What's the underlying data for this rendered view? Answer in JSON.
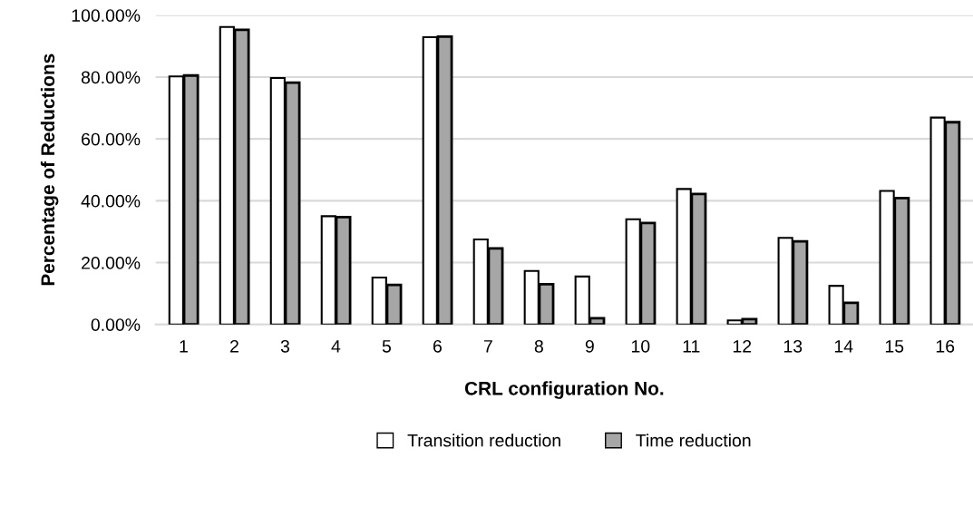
{
  "chart_data": {
    "type": "bar",
    "xlabel": "CRL configuration No.",
    "ylabel": "Percentage of Reductions",
    "categories": [
      "1",
      "2",
      "3",
      "4",
      "5",
      "6",
      "7",
      "8",
      "9",
      "10",
      "11",
      "12",
      "13",
      "14",
      "15",
      "16"
    ],
    "series": [
      {
        "name": "Transition reduction",
        "color": "#ffffff",
        "values": [
          80.2,
          96.2,
          79.7,
          35.0,
          15.2,
          92.9,
          27.5,
          17.3,
          15.5,
          34.0,
          43.8,
          1.3,
          28.0,
          12.5,
          43.2,
          66.9
        ]
      },
      {
        "name": "Time reduction",
        "color": "#a6a6a6",
        "values": [
          80.5,
          95.3,
          78.2,
          34.7,
          12.8,
          93.1,
          24.6,
          13.0,
          2.0,
          32.8,
          42.2,
          1.7,
          26.9,
          7.0,
          40.9,
          65.4
        ]
      }
    ],
    "ylim": [
      0,
      100
    ],
    "yticks": [
      {
        "value": 0,
        "label": "0.00%"
      },
      {
        "value": 20,
        "label": "20.00%"
      },
      {
        "value": 40,
        "label": "40.00%"
      },
      {
        "value": 60,
        "label": "60.00%"
      },
      {
        "value": 80,
        "label": "80.00%"
      },
      {
        "value": 100,
        "label": "100.00%"
      }
    ],
    "grid": "y",
    "legend": "bottom"
  }
}
